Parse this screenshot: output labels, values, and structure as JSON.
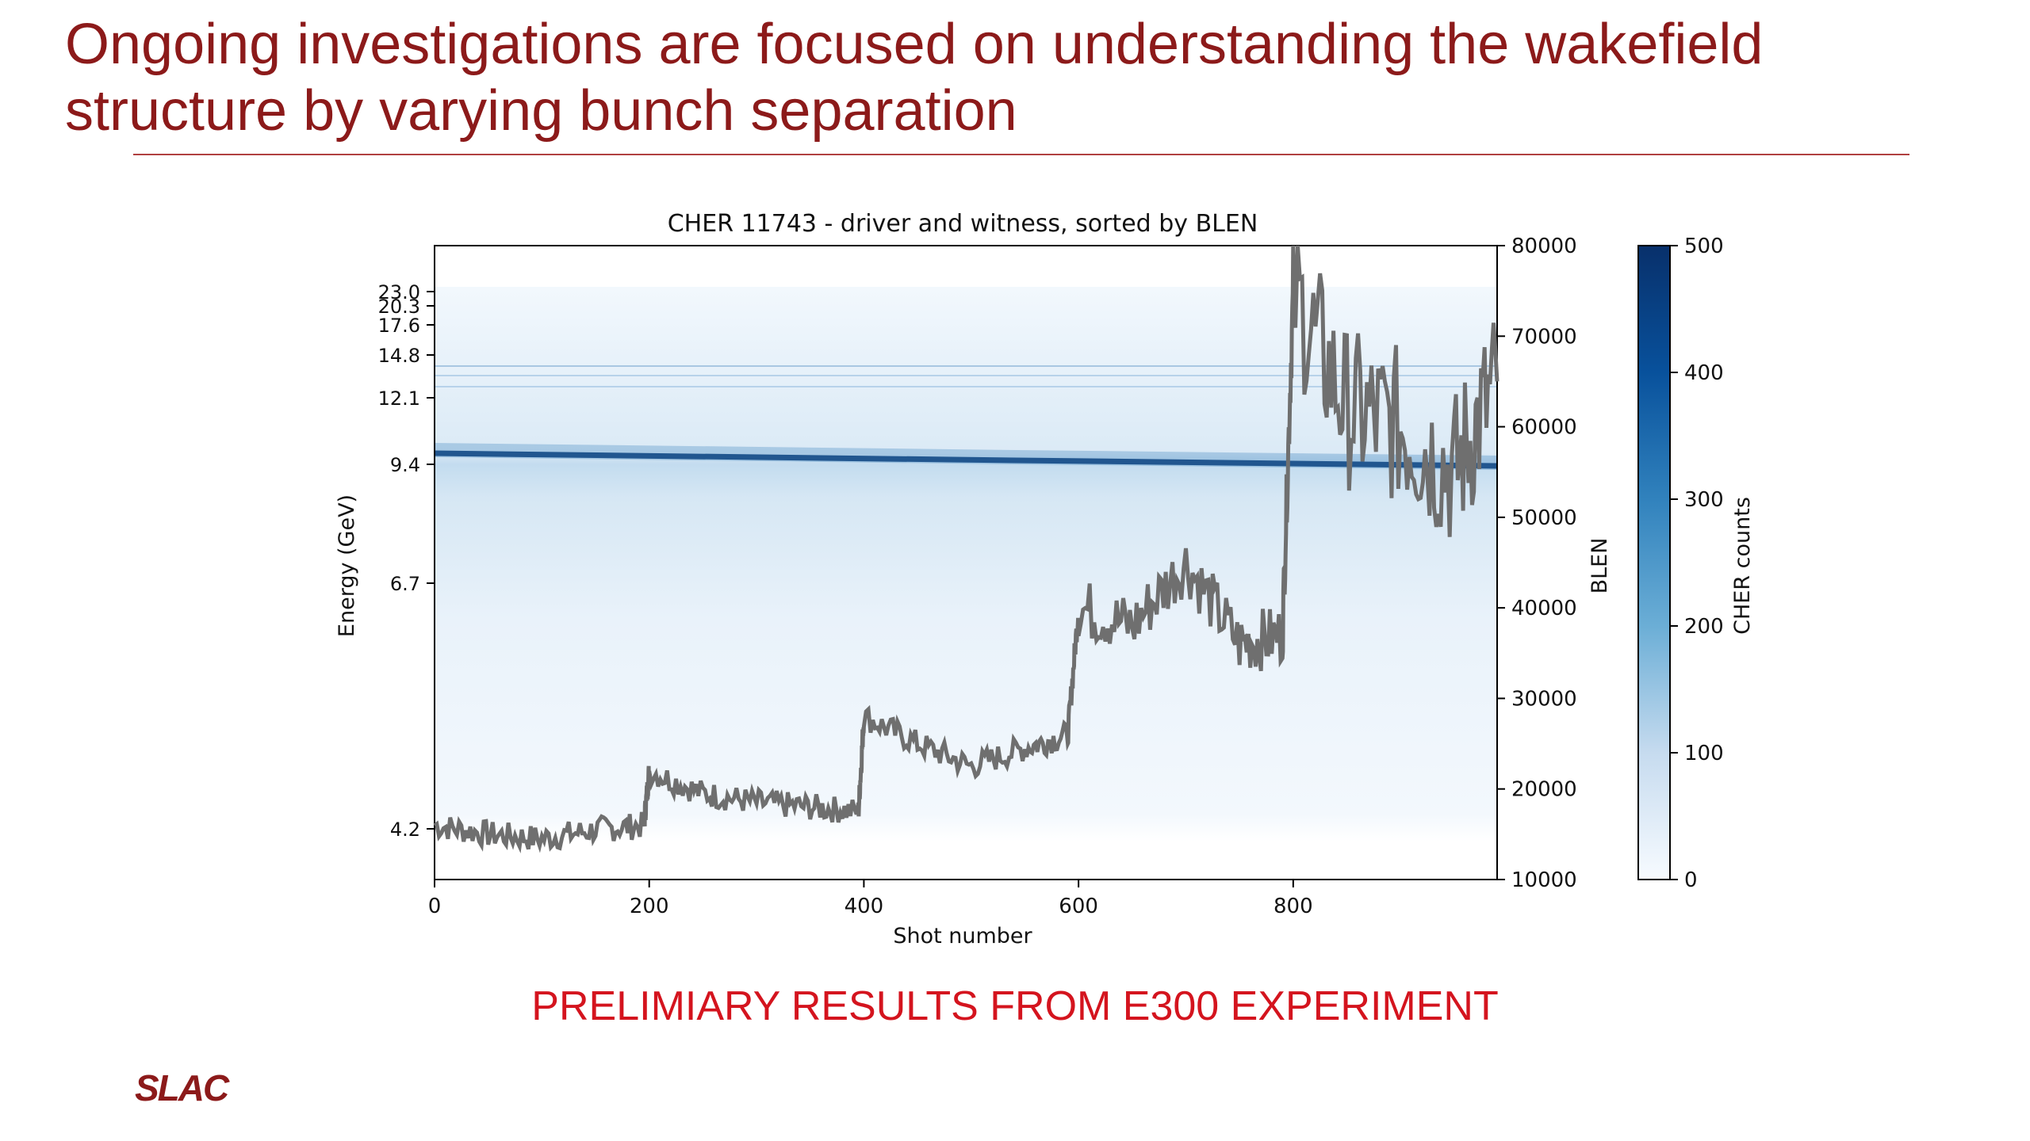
{
  "slide": {
    "title": "Ongoing investigations are focused on understanding the wakefield structure by varying bunch separation",
    "note": "PRELIMIARY RESULTS FROM E300 EXPERIMENT",
    "logo": "SLAC"
  },
  "colors": {
    "title": "#8c1a1a",
    "note": "#d4141e",
    "line": "#7a7a7a",
    "cmap_low": "#f7fbff",
    "cmap_high": "#08306b"
  },
  "chart_data": {
    "type": "heatmap",
    "title": "CHER 11743 - driver and witness, sorted by BLEN",
    "xlabel": "Shot number",
    "ylabel": "Energy (GeV)",
    "y2label": "BLEN",
    "colorbar_label": "CHER counts",
    "xlim": [
      0,
      990
    ],
    "x_ticks": [
      0,
      200,
      400,
      600,
      800
    ],
    "energy_ticks": [
      "23.0",
      "20.3",
      "17.6",
      "14.8",
      "12.1",
      "9.4",
      "6.7",
      "4.2"
    ],
    "blen_ylim": [
      10000,
      80000
    ],
    "blen_ticks": [
      10000,
      20000,
      30000,
      40000,
      50000,
      60000,
      70000,
      80000
    ],
    "colorbar_range": [
      0,
      500
    ],
    "colorbar_ticks": [
      0,
      100,
      200,
      300,
      400,
      500
    ],
    "driver_band_energy_gev": 9.4,
    "blen_series": {
      "name": "BLEN",
      "x": [
        0,
        50,
        100,
        150,
        195,
        200,
        250,
        300,
        350,
        395,
        400,
        450,
        500,
        550,
        590,
        600,
        650,
        700,
        750,
        790,
        800,
        850,
        900,
        950,
        990
      ],
      "y": [
        16000,
        15000,
        14500,
        15500,
        16000,
        22000,
        19500,
        18500,
        18000,
        17500,
        28000,
        25000,
        22500,
        24500,
        26000,
        40000,
        38000,
        45000,
        36000,
        37000,
        75000,
        62000,
        60000,
        55000,
        65000
      ]
    }
  }
}
